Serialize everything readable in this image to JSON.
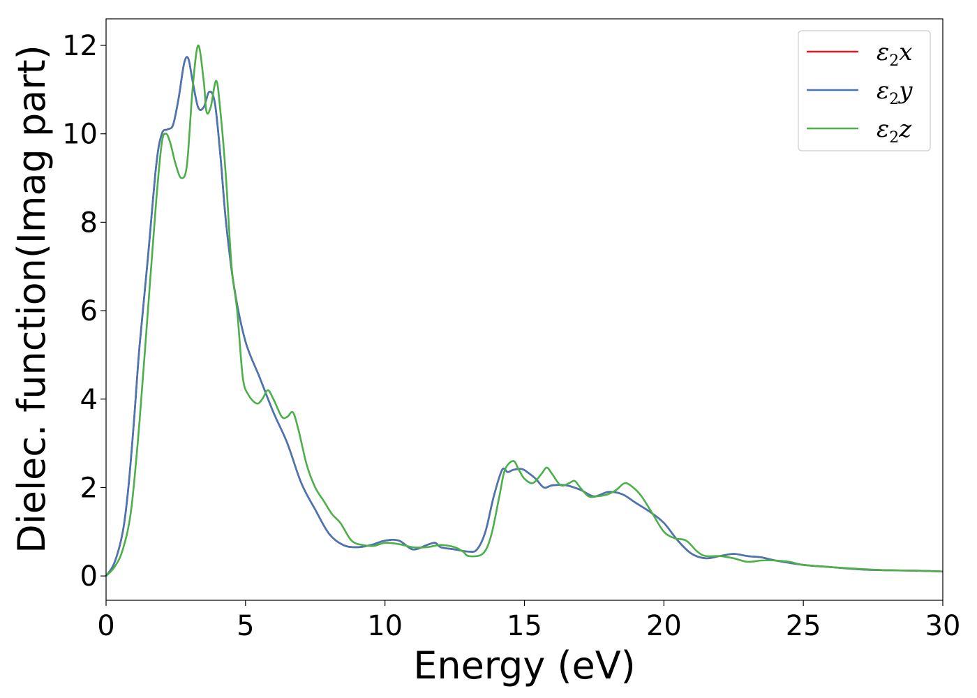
{
  "chart_data": {
    "type": "line",
    "title": "",
    "xlabel": "Energy (eV)",
    "ylabel": "Dielec. function(Imag part)",
    "xlim": [
      0,
      30
    ],
    "ylim": [
      -0.55,
      12.6
    ],
    "xticks": [
      0,
      5,
      10,
      15,
      20,
      25,
      30
    ],
    "yticks": [
      0,
      2,
      4,
      6,
      8,
      10,
      12
    ],
    "grid": false,
    "legend_position": "top-right",
    "series": [
      {
        "name": "ε₂x",
        "legend_main": "ε",
        "legend_sub": "2",
        "legend_var": "x",
        "color": "#e41a1c",
        "x": [
          0,
          0.3,
          0.6,
          0.8,
          1.0,
          1.2,
          1.5,
          1.8,
          2.0,
          2.2,
          2.4,
          2.6,
          2.8,
          2.95,
          3.1,
          3.3,
          3.5,
          3.7,
          3.9,
          4.1,
          4.3,
          4.6,
          5.0,
          5.5,
          6.0,
          6.5,
          7.0,
          7.5,
          8.0,
          8.5,
          9.0,
          9.5,
          10.0,
          10.5,
          11.0,
          11.5,
          11.8,
          12.0,
          12.5,
          13.0,
          13.3,
          13.6,
          13.9,
          14.2,
          14.4,
          14.6,
          14.9,
          15.1,
          15.4,
          15.7,
          16.0,
          16.5,
          17.0,
          17.5,
          18.0,
          18.5,
          19.0,
          19.5,
          20.0,
          20.5,
          21.0,
          21.5,
          22.0,
          22.5,
          23.0,
          23.5,
          24.0,
          25.0,
          26.0,
          27.0,
          28.0,
          29.0,
          30.0
        ],
        "y": [
          0,
          0.3,
          1.0,
          2.0,
          3.5,
          5.2,
          7.2,
          9.3,
          10.0,
          10.1,
          10.2,
          10.8,
          11.6,
          11.7,
          11.2,
          10.6,
          10.6,
          10.95,
          10.7,
          9.5,
          8.0,
          6.5,
          5.3,
          4.5,
          3.7,
          3.0,
          2.1,
          1.5,
          0.95,
          0.7,
          0.65,
          0.7,
          0.8,
          0.8,
          0.6,
          0.7,
          0.75,
          0.65,
          0.6,
          0.55,
          0.6,
          1.0,
          1.8,
          2.4,
          2.35,
          2.4,
          2.42,
          2.35,
          2.2,
          2.0,
          2.05,
          2.05,
          1.95,
          1.8,
          1.9,
          1.85,
          1.65,
          1.45,
          1.2,
          0.8,
          0.5,
          0.4,
          0.45,
          0.5,
          0.45,
          0.42,
          0.35,
          0.25,
          0.2,
          0.15,
          0.13,
          0.12,
          0.1
        ]
      },
      {
        "name": "ε₂y",
        "legend_main": "ε",
        "legend_sub": "2",
        "legend_var": "y",
        "color": "#4677b4",
        "x": [
          0,
          0.3,
          0.6,
          0.8,
          1.0,
          1.2,
          1.5,
          1.8,
          2.0,
          2.2,
          2.4,
          2.6,
          2.8,
          2.95,
          3.1,
          3.3,
          3.5,
          3.7,
          3.9,
          4.1,
          4.3,
          4.6,
          5.0,
          5.5,
          6.0,
          6.5,
          7.0,
          7.5,
          8.0,
          8.5,
          9.0,
          9.5,
          10.0,
          10.5,
          11.0,
          11.5,
          11.8,
          12.0,
          12.5,
          13.0,
          13.3,
          13.6,
          13.9,
          14.2,
          14.4,
          14.6,
          14.9,
          15.1,
          15.4,
          15.7,
          16.0,
          16.5,
          17.0,
          17.5,
          18.0,
          18.5,
          19.0,
          19.5,
          20.0,
          20.5,
          21.0,
          21.5,
          22.0,
          22.5,
          23.0,
          23.5,
          24.0,
          25.0,
          26.0,
          27.0,
          28.0,
          29.0,
          30.0
        ],
        "y": [
          0,
          0.3,
          1.0,
          2.0,
          3.5,
          5.2,
          7.2,
          9.3,
          10.0,
          10.1,
          10.2,
          10.8,
          11.6,
          11.7,
          11.2,
          10.6,
          10.6,
          10.95,
          10.7,
          9.5,
          8.0,
          6.5,
          5.3,
          4.5,
          3.7,
          3.0,
          2.1,
          1.5,
          0.95,
          0.7,
          0.65,
          0.7,
          0.8,
          0.8,
          0.6,
          0.7,
          0.75,
          0.65,
          0.6,
          0.55,
          0.6,
          1.0,
          1.8,
          2.4,
          2.35,
          2.4,
          2.42,
          2.35,
          2.2,
          2.0,
          2.05,
          2.05,
          1.95,
          1.8,
          1.9,
          1.85,
          1.65,
          1.45,
          1.2,
          0.8,
          0.5,
          0.4,
          0.45,
          0.5,
          0.45,
          0.42,
          0.35,
          0.25,
          0.2,
          0.15,
          0.13,
          0.12,
          0.1
        ]
      },
      {
        "name": "ε₂z",
        "legend_main": "ε",
        "legend_sub": "2",
        "legend_var": "z",
        "color": "#4daf4a",
        "x": [
          0,
          0.3,
          0.6,
          0.9,
          1.2,
          1.5,
          1.8,
          2.0,
          2.15,
          2.3,
          2.5,
          2.7,
          2.9,
          3.1,
          3.3,
          3.5,
          3.6,
          3.75,
          3.95,
          4.1,
          4.3,
          4.5,
          4.7,
          4.9,
          5.1,
          5.4,
          5.6,
          5.8,
          6.0,
          6.3,
          6.5,
          6.7,
          6.9,
          7.2,
          7.5,
          7.8,
          8.1,
          8.4,
          8.8,
          9.2,
          9.6,
          10.0,
          10.5,
          11.0,
          11.5,
          12.0,
          12.5,
          12.8,
          13.0,
          13.5,
          13.8,
          14.1,
          14.3,
          14.6,
          14.8,
          15.0,
          15.3,
          15.6,
          15.8,
          16.0,
          16.3,
          16.6,
          16.8,
          17.0,
          17.3,
          17.6,
          18.0,
          18.3,
          18.6,
          18.9,
          19.2,
          19.6,
          20.0,
          20.4,
          20.8,
          21.2,
          21.5,
          22.0,
          22.5,
          23.0,
          23.5,
          24.0,
          24.5,
          25.0,
          26.0,
          27.0,
          28.0,
          29.0,
          30.0
        ],
        "y": [
          0,
          0.2,
          0.6,
          1.5,
          3.5,
          6.0,
          8.5,
          9.8,
          10.0,
          9.8,
          9.3,
          9.0,
          9.3,
          11.0,
          12.0,
          11.2,
          10.5,
          10.6,
          11.2,
          10.5,
          9.0,
          7.0,
          6.0,
          4.5,
          4.1,
          3.9,
          4.0,
          4.2,
          4.0,
          3.6,
          3.6,
          3.7,
          3.3,
          2.5,
          2.0,
          1.7,
          1.4,
          1.2,
          0.8,
          0.7,
          0.68,
          0.75,
          0.72,
          0.65,
          0.65,
          0.7,
          0.65,
          0.55,
          0.45,
          0.5,
          0.9,
          1.8,
          2.4,
          2.6,
          2.4,
          2.2,
          2.1,
          2.3,
          2.45,
          2.3,
          2.05,
          2.1,
          2.15,
          2.0,
          1.8,
          1.8,
          1.85,
          1.95,
          2.1,
          2.0,
          1.8,
          1.4,
          1.0,
          0.85,
          0.8,
          0.55,
          0.45,
          0.45,
          0.4,
          0.32,
          0.35,
          0.35,
          0.32,
          0.25,
          0.2,
          0.16,
          0.13,
          0.12,
          0.1
        ]
      }
    ]
  }
}
